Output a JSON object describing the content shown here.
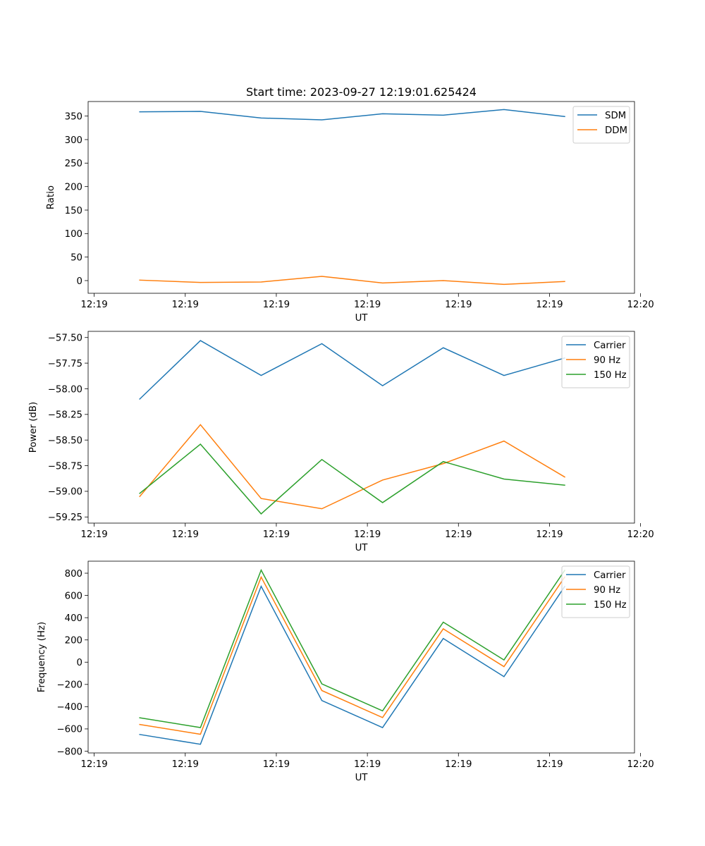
{
  "chart_data": [
    {
      "type": "line",
      "title": "Start time: 2023-09-27 12:19:01.625424",
      "xlabel": "UT",
      "ylabel": "Ratio",
      "xlim": [
        -0.1,
        8.9
      ],
      "ylim": [
        -27,
        381
      ],
      "x": [
        0.75,
        1.75,
        2.75,
        3.75,
        4.75,
        5.75,
        6.75,
        7.75
      ],
      "xticks": [
        0,
        1.5,
        3,
        4.5,
        6,
        7.5,
        9
      ],
      "xtick_labels": [
        "12:19",
        "12:19",
        "12:19",
        "12:19",
        "12:19",
        "12:19",
        "12:20"
      ],
      "yticks": [
        0,
        50,
        100,
        150,
        200,
        250,
        300,
        350
      ],
      "ytick_labels": [
        "0",
        "50",
        "100",
        "150",
        "200",
        "250",
        "300",
        "350"
      ],
      "legend_position": "top-right",
      "series": [
        {
          "name": "SDM",
          "color": "#1f77b4",
          "values": [
            359,
            360,
            346,
            342,
            355,
            352,
            364,
            349
          ]
        },
        {
          "name": "DDM",
          "color": "#ff7f0e",
          "values": [
            1,
            -4,
            -3,
            9,
            -5,
            0,
            -8,
            -2
          ]
        }
      ]
    },
    {
      "type": "line",
      "title": "",
      "xlabel": "UT",
      "ylabel": "Power (dB)",
      "xlim": [
        -0.1,
        8.9
      ],
      "ylim": [
        -59.31,
        -57.44
      ],
      "x": [
        0.75,
        1.75,
        2.75,
        3.75,
        4.75,
        5.75,
        6.75,
        7.75
      ],
      "xticks": [
        0,
        1.5,
        3,
        4.5,
        6,
        7.5,
        9
      ],
      "xtick_labels": [
        "12:19",
        "12:19",
        "12:19",
        "12:19",
        "12:19",
        "12:19",
        "12:20"
      ],
      "yticks": [
        -59.25,
        -59.0,
        -58.75,
        -58.5,
        -58.25,
        -58.0,
        -57.75,
        -57.5
      ],
      "ytick_labels": [
        "−59.25",
        "−59.00",
        "−58.75",
        "−58.50",
        "−58.25",
        "−58.00",
        "−57.75",
        "−57.50"
      ],
      "legend_position": "top-right",
      "series": [
        {
          "name": "Carrier",
          "color": "#1f77b4",
          "values": [
            -58.1,
            -57.53,
            -57.87,
            -57.56,
            -57.97,
            -57.6,
            -57.87,
            -57.7
          ]
        },
        {
          "name": "90 Hz",
          "color": "#ff7f0e",
          "values": [
            -59.05,
            -58.35,
            -59.07,
            -59.17,
            -58.89,
            -58.73,
            -58.51,
            -58.86
          ]
        },
        {
          "name": "150 Hz",
          "color": "#2ca02c",
          "values": [
            -59.02,
            -58.54,
            -59.22,
            -58.69,
            -59.11,
            -58.71,
            -58.88,
            -58.94
          ]
        }
      ]
    },
    {
      "type": "line",
      "title": "",
      "xlabel": "UT",
      "ylabel": "Frequency (Hz)",
      "xlim": [
        -0.1,
        8.9
      ],
      "ylim": [
        -816,
        908
      ],
      "x": [
        0.75,
        1.75,
        2.75,
        3.75,
        4.75,
        5.75,
        6.75,
        7.75
      ],
      "xticks": [
        0,
        1.5,
        3,
        4.5,
        6,
        7.5,
        9
      ],
      "xtick_labels": [
        "12:19",
        "12:19",
        "12:19",
        "12:19",
        "12:19",
        "12:19",
        "12:20"
      ],
      "yticks": [
        -800,
        -600,
        -400,
        -200,
        0,
        200,
        400,
        600,
        800
      ],
      "ytick_labels": [
        "−800",
        "−600",
        "−400",
        "−200",
        "0",
        "200",
        "400",
        "600",
        "800"
      ],
      "legend_position": "top-right",
      "series": [
        {
          "name": "Carrier",
          "color": "#1f77b4",
          "values": [
            -650,
            -738,
            682,
            -345,
            -588,
            213,
            -130,
            680
          ]
        },
        {
          "name": "90 Hz",
          "color": "#ff7f0e",
          "values": [
            -560,
            -648,
            765,
            -255,
            -498,
            300,
            -40,
            765
          ]
        },
        {
          "name": "150 Hz",
          "color": "#2ca02c",
          "values": [
            -500,
            -588,
            828,
            -195,
            -438,
            360,
            20,
            825
          ]
        }
      ]
    }
  ]
}
